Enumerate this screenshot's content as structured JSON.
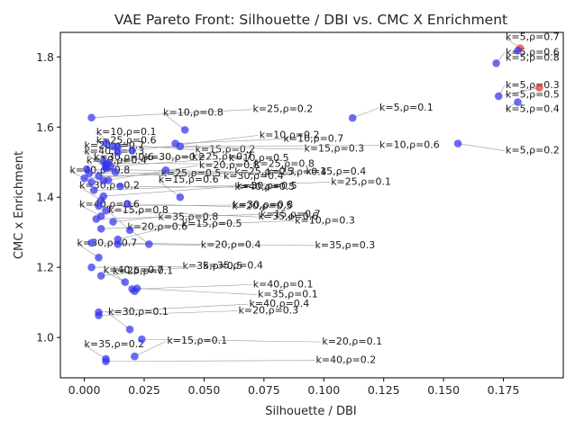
{
  "chart_data": {
    "type": "scatter",
    "title": "VAE Pareto Front: Silhouette / DBI vs. CMC X Enrichment",
    "xlabel": "Silhouette / DBI",
    "ylabel": "CMC x Enrichment",
    "xlim": [
      -0.01,
      0.2
    ],
    "ylim": [
      0.885,
      1.87
    ],
    "xticks": [
      0.0,
      0.025,
      0.05,
      0.075,
      0.1,
      0.125,
      0.15,
      0.175
    ],
    "xtick_labels": [
      "0.000",
      "0.025",
      "0.050",
      "0.075",
      "0.100",
      "0.125",
      "0.150",
      "0.175"
    ],
    "yticks": [
      1.0,
      1.2,
      1.4,
      1.6,
      1.8
    ],
    "ytick_labels": [
      "1.0",
      "1.2",
      "1.4",
      "1.6",
      "1.8"
    ],
    "grid": false,
    "colors": {
      "dominated": "#3333ee",
      "pareto": "#ee3333"
    },
    "points": [
      {
        "x": 0.182,
        "y": 1.825,
        "label": "k=5,ρ=0.7",
        "pareto": true
      },
      {
        "x": 0.181,
        "y": 1.818,
        "label": "k=5,ρ=0.8",
        "pareto": false
      },
      {
        "x": 0.172,
        "y": 1.782,
        "label": "k=5,ρ=0.6",
        "pareto": false
      },
      {
        "x": 0.19,
        "y": 1.712,
        "label": "k=5,ρ=0.5",
        "pareto": true
      },
      {
        "x": 0.173,
        "y": 1.688,
        "label": "k=5,ρ=0.3",
        "pareto": false
      },
      {
        "x": 0.181,
        "y": 1.671,
        "label": "k=5,ρ=0.4",
        "pareto": false
      },
      {
        "x": 0.112,
        "y": 1.626,
        "label": "k=5,ρ=0.1",
        "pareto": false
      },
      {
        "x": 0.156,
        "y": 1.553,
        "label": "k=5,ρ=0.2",
        "pareto": false
      },
      {
        "x": 0.003,
        "y": 1.627,
        "label": "k=25,ρ=0.2",
        "pareto": false
      },
      {
        "x": 0.009,
        "y": 1.553,
        "label": "k=15,ρ=0.2",
        "pareto": false
      },
      {
        "x": 0.042,
        "y": 1.592,
        "label": "k=10,ρ=0.8",
        "pareto": false
      },
      {
        "x": 0.012,
        "y": 1.545,
        "label": "k=15,ρ=0.3",
        "pareto": false
      },
      {
        "x": 0.038,
        "y": 1.553,
        "label": "k=10,ρ=0.7",
        "pareto": false
      },
      {
        "x": 0.014,
        "y": 1.544,
        "label": "k=10,ρ=0.1",
        "pareto": false
      },
      {
        "x": 0.04,
        "y": 1.545,
        "label": "k=10,ρ=0.6",
        "pareto": false
      },
      {
        "x": 0.02,
        "y": 1.533,
        "label": "k=10,ρ=0.2",
        "pareto": false
      },
      {
        "x": 0.014,
        "y": 1.528,
        "label": "k=25,ρ=0.6",
        "pareto": false
      },
      {
        "x": 0.008,
        "y": 1.502,
        "label": "k=25,ρ=0.7",
        "pareto": false
      },
      {
        "x": 0.01,
        "y": 1.497,
        "label": "k=25,ρ=0.8",
        "pareto": false
      },
      {
        "x": 0.009,
        "y": 1.491,
        "label": "k=20,ρ=0.7",
        "pareto": false
      },
      {
        "x": 0.011,
        "y": 1.488,
        "label": "k=10,ρ=0.5",
        "pareto": false
      },
      {
        "x": 0.009,
        "y": 1.485,
        "label": "k=30,ρ=0.2",
        "pareto": false
      },
      {
        "x": 0.009,
        "y": 1.482,
        "label": "k=40,ρ=0.3",
        "pareto": false
      },
      {
        "x": 0.001,
        "y": 1.48,
        "label": "k=25,ρ=0.3",
        "pareto": false
      },
      {
        "x": 0.034,
        "y": 1.477,
        "label": "k=30,ρ=0.4",
        "pareto": false
      },
      {
        "x": 0.013,
        "y": 1.472,
        "label": "k=30,ρ=0.6",
        "pareto": false
      },
      {
        "x": 0.002,
        "y": 1.468,
        "label": "k=25,ρ=0.4",
        "pareto": false
      },
      {
        "x": 0.0,
        "y": 1.454,
        "label": "k=25,ρ=0.5",
        "pareto": false
      },
      {
        "x": 0.003,
        "y": 1.443,
        "label": "k=40,ρ=0.8",
        "pareto": false
      },
      {
        "x": 0.006,
        "y": 1.46,
        "label": "k=15,ρ=0.4",
        "pareto": false
      },
      {
        "x": 0.008,
        "y": 1.447,
        "label": "k=20,ρ=0.8",
        "pareto": false
      },
      {
        "x": 0.01,
        "y": 1.448,
        "label": "k=10,ρ=0.4",
        "pareto": false
      },
      {
        "x": 0.004,
        "y": 1.42,
        "label": "k=25,ρ=0.1",
        "pareto": false
      },
      {
        "x": 0.015,
        "y": 1.431,
        "label": "k=40,ρ=0.5",
        "pareto": false
      },
      {
        "x": 0.04,
        "y": 1.4,
        "label": "k=15,ρ=0.6",
        "pareto": false
      },
      {
        "x": 0.018,
        "y": 1.381,
        "label": "k=20,ρ=0.5",
        "pareto": false
      },
      {
        "x": 0.008,
        "y": 1.403,
        "label": "k=30,ρ=0.5",
        "pareto": false
      },
      {
        "x": 0.007,
        "y": 1.391,
        "label": "k=30,ρ=0.2",
        "pareto": false
      },
      {
        "x": 0.006,
        "y": 1.375,
        "label": "k=30,ρ=0.8",
        "pareto": false
      },
      {
        "x": 0.009,
        "y": 1.362,
        "label": "k=35,ρ=0.6",
        "pareto": false
      },
      {
        "x": 0.007,
        "y": 1.346,
        "label": "k=40,ρ=0.6",
        "pareto": false
      },
      {
        "x": 0.005,
        "y": 1.338,
        "label": "k=15,ρ=0.7",
        "pareto": false
      },
      {
        "x": 0.012,
        "y": 1.33,
        "label": "k=35,ρ=0.8",
        "pareto": false
      },
      {
        "x": 0.019,
        "y": 1.306,
        "label": "k=15,ρ=0.8",
        "pareto": false
      },
      {
        "x": 0.007,
        "y": 1.31,
        "label": "k=10,ρ=0.3",
        "pareto": false
      },
      {
        "x": 0.014,
        "y": 1.28,
        "label": "k=15,ρ=0.5",
        "pareto": false
      },
      {
        "x": 0.027,
        "y": 1.266,
        "label": "k=20,ρ=0.6",
        "pareto": false
      },
      {
        "x": 0.003,
        "y": 1.27,
        "label": "k=35,ρ=0.3",
        "pareto": false
      },
      {
        "x": 0.014,
        "y": 1.266,
        "label": "k=20,ρ=0.4",
        "pareto": false
      },
      {
        "x": 0.006,
        "y": 1.228,
        "label": "k=30,ρ=0.7",
        "pareto": false
      },
      {
        "x": 0.003,
        "y": 1.2,
        "label": "k=35,ρ=0.5",
        "pareto": false
      },
      {
        "x": 0.007,
        "y": 1.176,
        "label": "k=35,ρ=0.4",
        "pareto": false
      },
      {
        "x": 0.017,
        "y": 1.158,
        "label": "k=40,ρ=0.7",
        "pareto": false
      },
      {
        "x": 0.02,
        "y": 1.138,
        "label": "k=40,ρ=0.1",
        "pareto": false
      },
      {
        "x": 0.022,
        "y": 1.14,
        "label": "k=35,ρ=0.1",
        "pareto": false
      },
      {
        "x": 0.021,
        "y": 1.132,
        "label": "k=25,ρ=0.1",
        "pareto": false
      },
      {
        "x": 0.006,
        "y": 1.072,
        "label": "k=40,ρ=0.4",
        "pareto": false
      },
      {
        "x": 0.006,
        "y": 1.063,
        "label": "k=20,ρ=0.3",
        "pareto": false
      },
      {
        "x": 0.019,
        "y": 1.023,
        "label": "k=30,ρ=0.1",
        "pareto": false
      },
      {
        "x": 0.024,
        "y": 0.995,
        "label": "k=20,ρ=0.1",
        "pareto": false
      },
      {
        "x": 0.021,
        "y": 0.946,
        "label": "k=15,ρ=0.1",
        "pareto": false
      },
      {
        "x": 0.009,
        "y": 0.939,
        "label": "k=35,ρ=0.2",
        "pareto": false
      },
      {
        "x": 0.009,
        "y": 0.932,
        "label": "k=40,ρ=0.2",
        "pareto": false
      }
    ]
  }
}
